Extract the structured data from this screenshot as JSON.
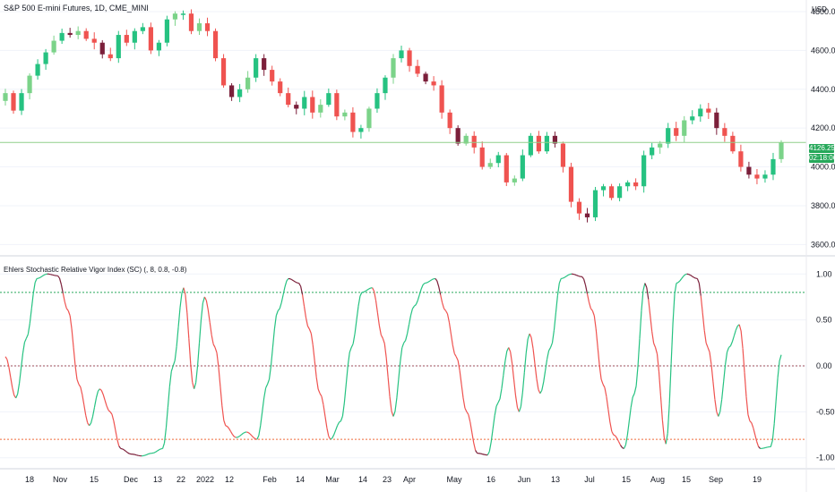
{
  "main_pane": {
    "title": "S&P 500 E-mini Futures, 1D, CME_MINI",
    "currency": "USD",
    "price_ticks": [
      "4800.00",
      "4600.00",
      "4400.00",
      "4200.00",
      "4000.00",
      "3800.00",
      "3600.00"
    ],
    "last_price": "4126.25",
    "countdown": "02:18:06"
  },
  "indicator_pane": {
    "title": "Ehlers Stochastic Relative Vigor Index (SC) (, 8, 0.8, -0.8)",
    "value_ticks": [
      "1.00",
      "0.50",
      "0.00",
      "-0.50",
      "-1.00"
    ],
    "upper_level": 0.8,
    "lower_level": -0.8
  },
  "time_axis": {
    "labels": [
      "18",
      "Nov",
      "15",
      "Dec",
      "13",
      "22",
      "2022",
      "12",
      "Feb",
      "14",
      "Mar",
      "14",
      "23",
      "Apr",
      "May",
      "16",
      "Jun",
      "13",
      "Jul",
      "15",
      "Aug",
      "15",
      "Sep",
      "19"
    ]
  },
  "colors": {
    "up": "#26c281",
    "up_light": "#7bd389",
    "down": "#ef5350",
    "down_dark": "#7b1f3a",
    "level_upper": "#26a85a",
    "level_lower": "#ef6b3a",
    "zero_line": "#9c4d5a",
    "price_line": "#8fcf8a"
  },
  "chart_data": [
    {
      "type": "candlestick",
      "title": "S&P 500 E-mini Futures, 1D, CME_MINI",
      "ylim": [
        3560,
        4860
      ],
      "series": [
        {
          "values": [
            4380,
            4290,
            4380,
            4470,
            4530,
            4590,
            4650,
            4690,
            4680,
            4700,
            4660,
            4640,
            4580,
            4560,
            4680,
            4640,
            4700,
            4720,
            4600,
            4640,
            4760,
            4790,
            4790,
            4700,
            4740,
            4700,
            4560,
            4420,
            4360,
            4400,
            4460,
            4560,
            4500,
            4440,
            4380,
            4320,
            4300,
            4360,
            4280,
            4320,
            4380,
            4260,
            4280,
            4180,
            4200,
            4300,
            4380,
            4460,
            4560,
            4600,
            4520,
            4480,
            4440,
            4420,
            4280,
            4200,
            4120,
            4160,
            4100,
            4000,
            4020,
            4060,
            3920,
            3940,
            4060,
            4160,
            4080,
            4160,
            4120,
            4000,
            3820,
            3760,
            3740,
            3880,
            3900,
            3840,
            3900,
            3920,
            3900,
            4060,
            4100,
            4120,
            4200,
            4160,
            4240,
            4260,
            4300,
            4280,
            4200,
            4160,
            4080,
            4000,
            3960,
            3940,
            3960,
            4040,
            4126
          ]
        }
      ]
    },
    {
      "type": "line",
      "title": "Ehlers Stochastic Relative Vigor Index (SC) (, 8, 0.8, -0.8)",
      "ylim": [
        -1.1,
        1.1
      ],
      "series": [
        {
          "values": [
            0.1,
            -0.35,
            0.3,
            0.95,
            1.0,
            0.98,
            0.6,
            -0.2,
            -0.65,
            -0.25,
            -0.5,
            -0.9,
            -0.96,
            -0.98,
            -0.95,
            -0.9,
            0.0,
            0.85,
            -0.25,
            0.75,
            0.2,
            -0.65,
            -0.78,
            -0.72,
            -0.8,
            -0.2,
            0.6,
            0.95,
            0.9,
            0.4,
            -0.3,
            -0.8,
            -0.6,
            0.2,
            0.8,
            0.85,
            0.3,
            -0.55,
            0.25,
            0.65,
            0.9,
            0.95,
            0.6,
            0.1,
            -0.5,
            -0.95,
            -0.97,
            -0.4,
            0.2,
            -0.5,
            0.35,
            -0.3,
            0.2,
            0.95,
            1.0,
            0.97,
            0.6,
            -0.2,
            -0.75,
            -0.9,
            -0.3,
            0.9,
            0.2,
            -0.85,
            0.9,
            1.0,
            0.95,
            0.2,
            -0.55,
            0.2,
            0.45,
            -0.6,
            -0.9,
            -0.88,
            0.12
          ]
        }
      ]
    }
  ]
}
